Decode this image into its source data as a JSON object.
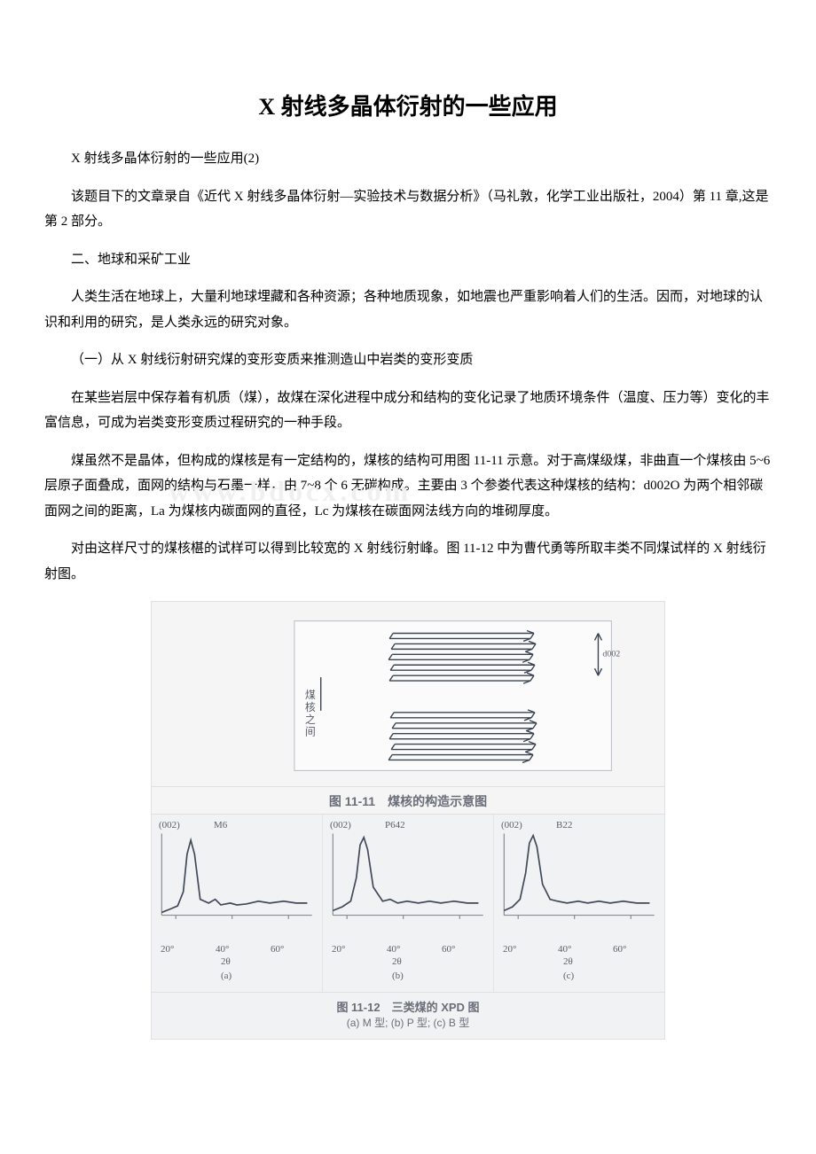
{
  "title": "X 射线多晶体衍射的一些应用",
  "paragraphs": {
    "p1": "X 射线多晶体衍射的一些应用(2)",
    "p2": "该题目下的文章录自《近代 X 射线多晶体衍射—实验技术与数据分析》（马礼敦，化学工业出版社，2004）第 11 章,这是第 2 部分。",
    "p3": "二、地球和采矿工业",
    "p4": "人类生活在地球上，大量利地球埋藏和各种资源；各种地质现象，如地震也严重影响着人们的生活。因而，对地球的认识和利用的研究，是人类永远的研究对象。",
    "p5": "（一）从 X 射线衍射研究煤的变形变质来推测造山中岩类的变形变质",
    "p6": "在某些岩层中保存着有机质（煤），故煤在深化进程中成分和结构的变化记录了地质环境条件（温度、压力等）变化的丰富信息，可成为岩类变形变质过程研究的一种手段。",
    "p7": "煤虽然不是晶体，但构成的煤核是有一定结构的，煤核的结构可用图 11-11 示意。对于高煤级煤，非曲直一个煤核由 5~6 层原子面叠成，面网的结构与石墨一样，由 7~8 个 6 无碳构成。主要由 3 个参娄代表这种煤核的结构：d002O 为两个相邻碳面网之间的距离，La 为煤核内碳面网的直径，Lc 为煤核在碳面网法线方向的堆砌厚度。",
    "p8": "对由这样尺寸的煤核椹的试样可以得到比较宽的 X 射线衍射峰。图 11-12 中为曹代勇等所取丰类不同煤试样的 X 射线衍射图。"
  },
  "watermark": "www.bdocx.com",
  "figure11_11": {
    "caption": "图 11-11　煤核的构造示意图",
    "background_color": "#f5f5f6",
    "stroke_color": "#3a4452",
    "side_label_top": "煤",
    "side_label_mid": "核",
    "side_label_bot": "之",
    "side_label_bot2": "间",
    "dim_label": "d002",
    "layers": [
      {
        "y": 20,
        "skew": 2
      },
      {
        "y": 32,
        "skew": 4
      },
      {
        "y": 44,
        "skew": 1
      },
      {
        "y": 56,
        "skew": 3
      },
      {
        "y": 68,
        "skew": 2
      }
    ],
    "layers2": [
      {
        "y": 110,
        "skew": 3
      },
      {
        "y": 122,
        "skew": 5
      },
      {
        "y": 134,
        "skew": 2
      },
      {
        "y": 146,
        "skew": 4
      },
      {
        "y": 158,
        "skew": 1
      }
    ]
  },
  "figure11_12": {
    "caption_line1": "图 11-12　三类煤的 XPD 图",
    "caption_line2": "(a) M 型;  (b) P 型;  (c) B 型",
    "background_color": "#f1f2f4",
    "line_color": "#414a59",
    "panels": [
      {
        "id": "a",
        "peak_label": "(002)",
        "sample_label": "M6",
        "xticks": [
          "20°",
          "40°",
          "60°"
        ],
        "xlabel": "2θ",
        "sub": "(a)",
        "curve": [
          [
            5,
            92
          ],
          [
            15,
            88
          ],
          [
            22,
            85
          ],
          [
            28,
            70
          ],
          [
            32,
            30
          ],
          [
            36,
            15
          ],
          [
            40,
            30
          ],
          [
            46,
            78
          ],
          [
            55,
            82
          ],
          [
            62,
            78
          ],
          [
            68,
            84
          ],
          [
            78,
            82
          ],
          [
            85,
            84
          ],
          [
            95,
            83
          ],
          [
            108,
            80
          ],
          [
            120,
            82
          ],
          [
            135,
            80
          ],
          [
            148,
            82
          ],
          [
            160,
            82
          ]
        ]
      },
      {
        "id": "b",
        "peak_label": "(002)",
        "sample_label": "P642",
        "xticks": [
          "20°",
          "40°",
          "60°"
        ],
        "xlabel": "2θ",
        "sub": "(b)",
        "curve": [
          [
            5,
            90
          ],
          [
            15,
            86
          ],
          [
            24,
            80
          ],
          [
            30,
            55
          ],
          [
            34,
            20
          ],
          [
            38,
            12
          ],
          [
            42,
            25
          ],
          [
            48,
            65
          ],
          [
            58,
            80
          ],
          [
            66,
            78
          ],
          [
            74,
            82
          ],
          [
            84,
            80
          ],
          [
            96,
            82
          ],
          [
            108,
            80
          ],
          [
            120,
            82
          ],
          [
            134,
            80
          ],
          [
            148,
            82
          ],
          [
            160,
            82
          ]
        ]
      },
      {
        "id": "c",
        "peak_label": "(002)",
        "sample_label": "B22",
        "xticks": [
          "20°",
          "40°",
          "60°"
        ],
        "xlabel": "2θ",
        "sub": "(c)",
        "curve": [
          [
            5,
            90
          ],
          [
            14,
            86
          ],
          [
            22,
            78
          ],
          [
            28,
            50
          ],
          [
            32,
            18
          ],
          [
            36,
            10
          ],
          [
            40,
            22
          ],
          [
            46,
            62
          ],
          [
            54,
            78
          ],
          [
            62,
            80
          ],
          [
            72,
            82
          ],
          [
            84,
            80
          ],
          [
            94,
            82
          ],
          [
            106,
            80
          ],
          [
            118,
            82
          ],
          [
            132,
            80
          ],
          [
            146,
            82
          ],
          [
            160,
            82
          ]
        ]
      }
    ]
  },
  "colors": {
    "text": "#000000",
    "caption_text": "#6a6e78",
    "border": "#e0e0e0"
  }
}
